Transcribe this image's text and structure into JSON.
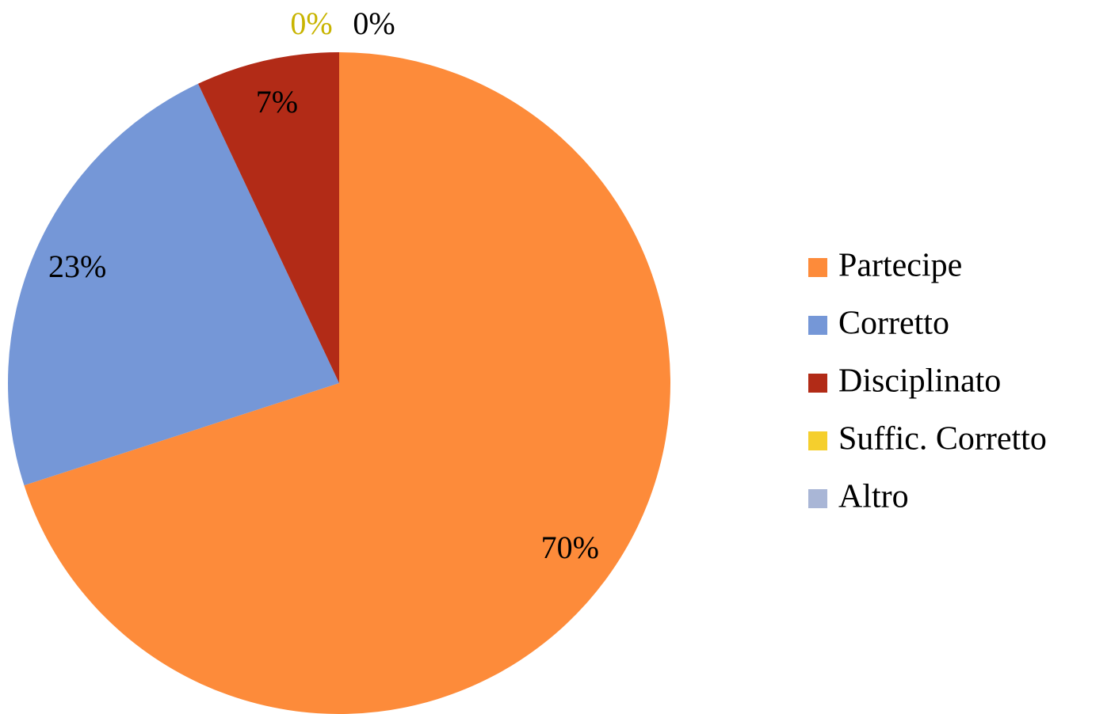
{
  "chart_data": {
    "type": "pie",
    "categories": [
      "Partecipe",
      "Corretto",
      "Disciplinato",
      "Suffic. Corretto",
      "Altro"
    ],
    "values": [
      70,
      23,
      7,
      0,
      0
    ],
    "value_labels": [
      "70%",
      "23%",
      "7%",
      "0%",
      "0%"
    ],
    "colors": [
      "#fd8b3a",
      "#7597d7",
      "#b22b17",
      "#f5cf2d",
      "#a9b6d6"
    ],
    "label_colors": [
      "#000000",
      "#000000",
      "#000000",
      "#c8b400",
      "#000000"
    ],
    "legend": "right"
  }
}
